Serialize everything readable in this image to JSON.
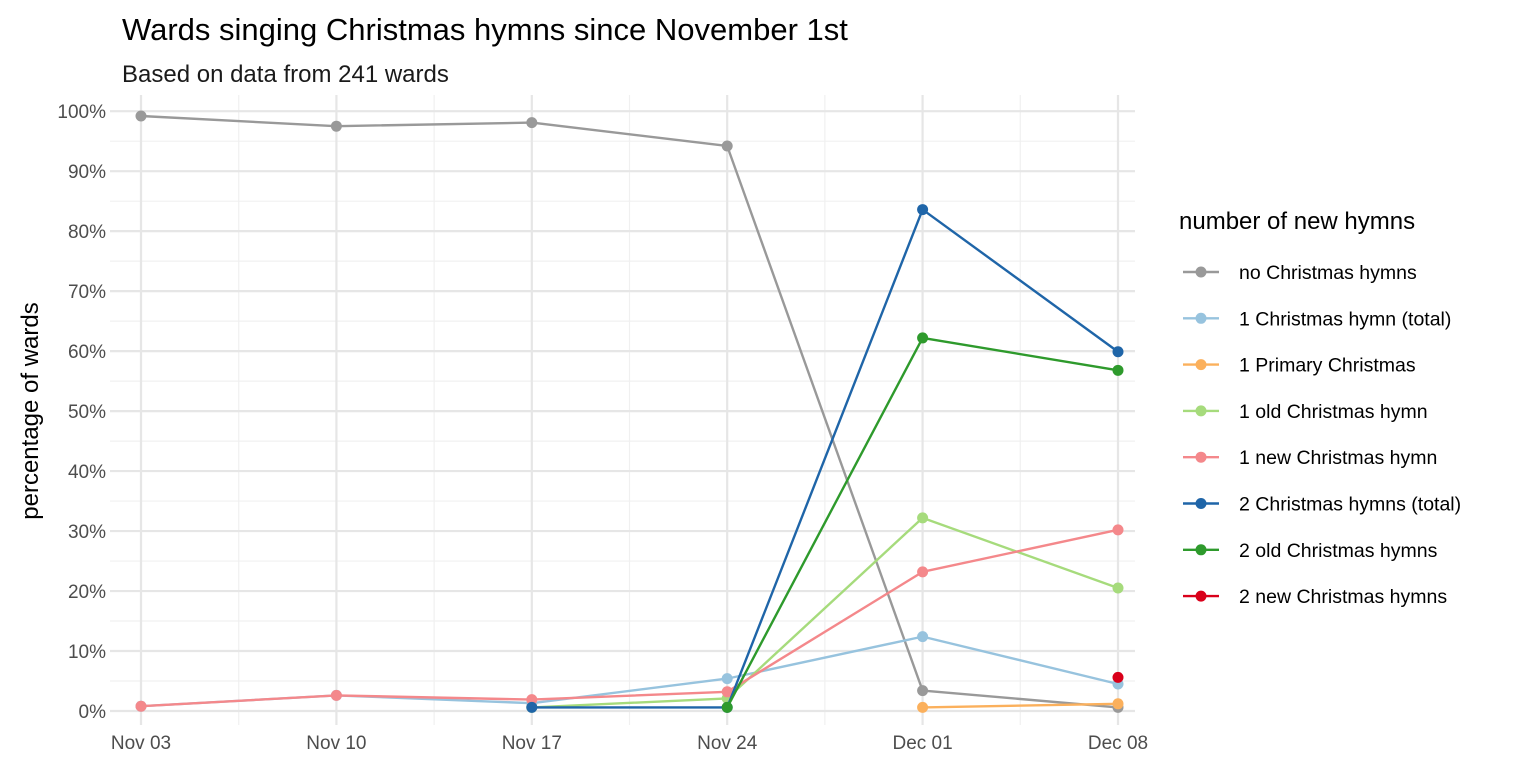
{
  "chart_data": {
    "type": "line",
    "title": "Wards singing Christmas hymns since November 1st",
    "subtitle": "Based on data from 241 wards",
    "xlabel": "",
    "ylabel": "percentage of wards",
    "x": [
      "2019-11-03",
      "2019-11-10",
      "2019-11-17",
      "2019-11-24",
      "2019-12-01",
      "2019-12-08"
    ],
    "x_tick_labels": [
      "Nov 03",
      "Nov 10",
      "Nov 17",
      "Nov 24",
      "Dec 01",
      "Dec 08"
    ],
    "ylim": [
      0,
      100
    ],
    "y_ticks": [
      0,
      10,
      20,
      30,
      40,
      50,
      60,
      70,
      80,
      90,
      100
    ],
    "y_tick_labels": [
      "0%",
      "10%",
      "20%",
      "30%",
      "40%",
      "50%",
      "60%",
      "70%",
      "80%",
      "90%",
      "100%"
    ],
    "grid": true,
    "legend_position": "right",
    "legend_title": "number of new hymns",
    "series": [
      {
        "name": "no Christmas hymns",
        "color": "#999999",
        "values": [
          99.2,
          97.5,
          98.1,
          94.2,
          3.4,
          0.6
        ]
      },
      {
        "name": "1 Christmas hymn (total)",
        "color": "#97c3de",
        "values": [
          0.8,
          2.6,
          1.3,
          5.4,
          12.4,
          4.5
        ]
      },
      {
        "name": "1 Primary Christmas",
        "color": "#fbb05c",
        "values": [
          null,
          null,
          null,
          null,
          0.6,
          1.2
        ]
      },
      {
        "name": "1 old Christmas hymn",
        "color": "#a6db7c",
        "values": [
          null,
          null,
          0.6,
          2.1,
          32.2,
          20.5
        ]
      },
      {
        "name": "1 new Christmas hymn",
        "color": "#f4888b",
        "values": [
          0.8,
          2.6,
          1.9,
          3.2,
          23.2,
          30.2
        ]
      },
      {
        "name": "2 Christmas hymns (total)",
        "color": "#1f65a8",
        "values": [
          null,
          null,
          0.6,
          0.6,
          83.6,
          59.9
        ]
      },
      {
        "name": "2 old Christmas hymns",
        "color": "#2e9a2c",
        "values": [
          null,
          null,
          null,
          0.6,
          62.2,
          56.8
        ]
      },
      {
        "name": "2 new Christmas hymns",
        "color": "#d9001a",
        "values": [
          null,
          null,
          null,
          null,
          null,
          5.6
        ]
      }
    ]
  }
}
